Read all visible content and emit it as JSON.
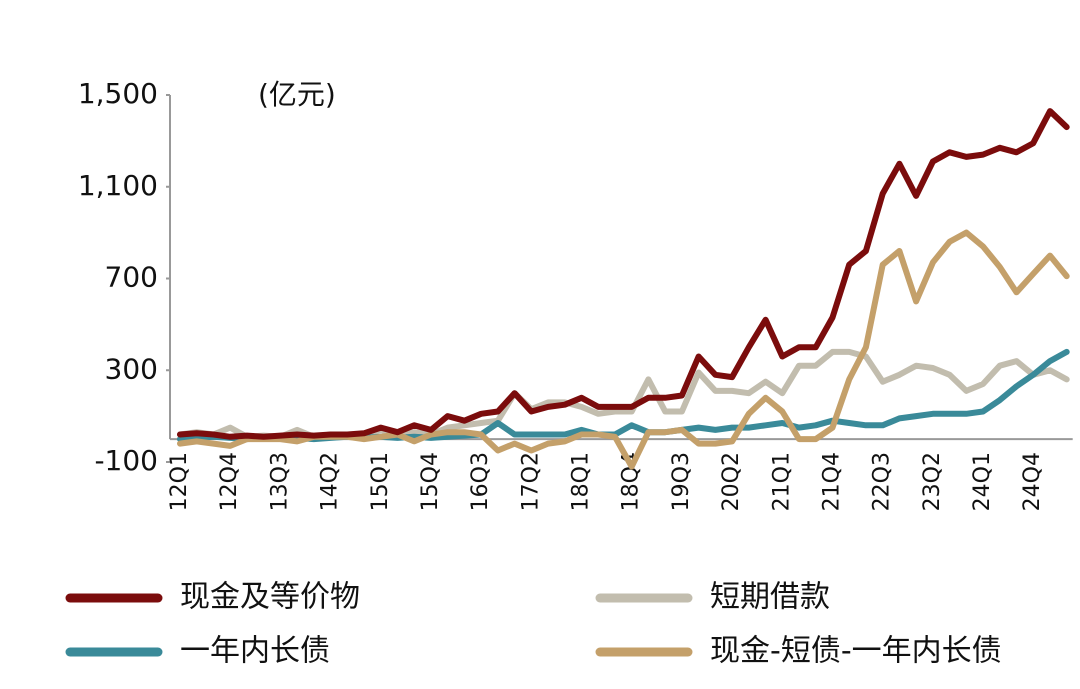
{
  "chart_data": {
    "type": "line",
    "y_unit_label": "(亿元)",
    "categories": [
      "12Q1",
      null,
      null,
      "12Q4",
      null,
      null,
      "13Q3",
      null,
      null,
      "14Q2",
      null,
      null,
      "15Q1",
      null,
      null,
      "15Q4",
      null,
      null,
      "16Q3",
      null,
      null,
      "17Q2",
      null,
      null,
      "18Q1",
      null,
      null,
      "18Q4",
      null,
      null,
      "19Q3",
      null,
      null,
      "20Q2",
      null,
      null,
      "21Q1",
      null,
      null,
      "21Q4",
      null,
      null,
      "22Q3",
      null,
      null,
      "23Q2",
      null,
      null,
      "24Q1",
      null,
      null,
      "24Q4",
      null,
      null
    ],
    "series": [
      {
        "name": "现金及等价物",
        "color": "#7b0c0c",
        "values": [
          20,
          25,
          20,
          10,
          15,
          10,
          15,
          20,
          15,
          20,
          20,
          25,
          50,
          30,
          60,
          40,
          100,
          80,
          110,
          120,
          200,
          120,
          140,
          150,
          180,
          140,
          140,
          140,
          180,
          180,
          190,
          360,
          280,
          270,
          400,
          520,
          360,
          400,
          400,
          530,
          760,
          820,
          1070,
          1200,
          1060,
          1210,
          1250,
          1230,
          1240,
          1270,
          1250,
          1290,
          1430,
          1360
        ]
      },
      {
        "name": "短期借款",
        "color": "#c2bdae",
        "values": [
          20,
          30,
          20,
          50,
          10,
          15,
          10,
          40,
          10,
          20,
          10,
          15,
          40,
          20,
          30,
          20,
          50,
          60,
          70,
          80,
          200,
          130,
          160,
          160,
          140,
          110,
          120,
          120,
          260,
          120,
          120,
          290,
          210,
          210,
          200,
          250,
          200,
          320,
          320,
          380,
          380,
          360,
          250,
          280,
          320,
          310,
          280,
          210,
          240,
          320,
          340,
          280,
          300,
          260
        ]
      },
      {
        "name": "一年内长债",
        "color": "#3a8a99",
        "values": [
          0,
          5,
          10,
          5,
          0,
          5,
          10,
          5,
          0,
          5,
          10,
          5,
          10,
          5,
          10,
          5,
          10,
          15,
          20,
          70,
          20,
          20,
          20,
          20,
          40,
          20,
          20,
          60,
          30,
          30,
          40,
          50,
          40,
          50,
          50,
          60,
          70,
          50,
          60,
          80,
          70,
          60,
          60,
          90,
          100,
          110,
          110,
          110,
          120,
          170,
          230,
          280,
          340,
          380
        ]
      },
      {
        "name": "现金-短债-一年内长债",
        "color": "#c4a06a",
        "values": [
          -20,
          -10,
          -20,
          -30,
          0,
          0,
          0,
          -10,
          10,
          10,
          10,
          0,
          10,
          20,
          -10,
          20,
          30,
          30,
          20,
          -50,
          -20,
          -50,
          -20,
          -10,
          20,
          20,
          10,
          -120,
          30,
          30,
          40,
          -20,
          -20,
          -10,
          110,
          180,
          120,
          0,
          0,
          50,
          260,
          400,
          760,
          820,
          600,
          770,
          860,
          900,
          840,
          750,
          640,
          720,
          800,
          710
        ]
      }
    ],
    "ylim": [
      -100,
      1500
    ],
    "yticks": [
      -100,
      300,
      700,
      {
        "value": 1100,
        "label": "1,100"
      },
      {
        "value": 1500,
        "label": "1,500"
      }
    ]
  }
}
